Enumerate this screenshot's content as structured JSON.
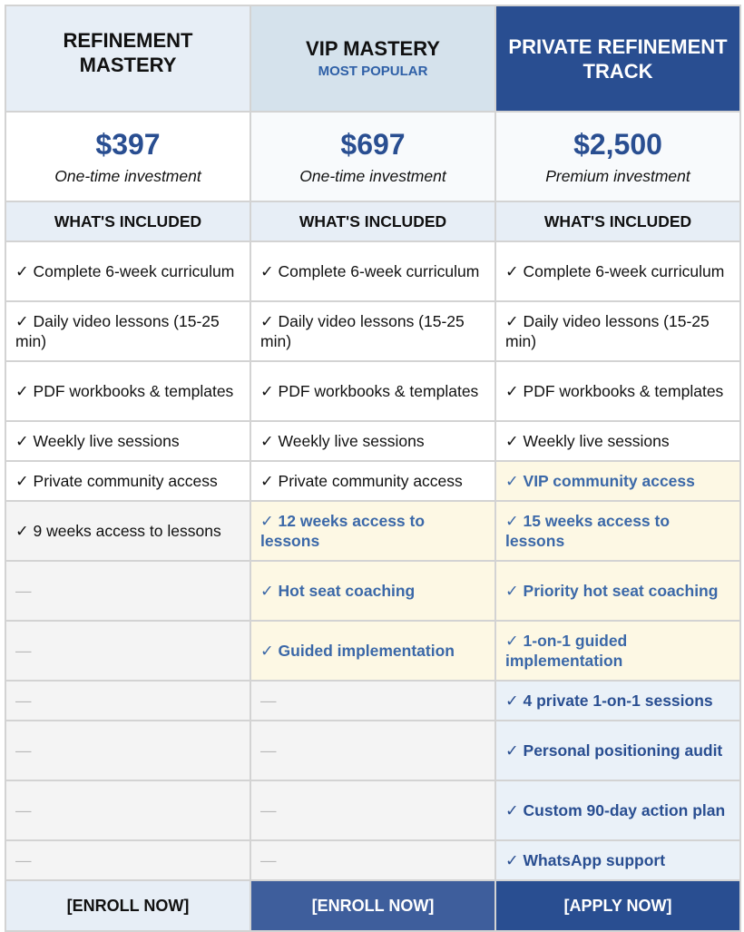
{
  "tiers": [
    {
      "name": "Refinement Mastery",
      "badge": "",
      "price": "$397",
      "price_note": "One-time investment",
      "cta": "[ENROLL NOW]"
    },
    {
      "name": "VIP Mastery",
      "badge": "MOST POPULAR",
      "price": "$697",
      "price_note": "One-time investment",
      "cta": "[ENROLL NOW]"
    },
    {
      "name": "Private Refinement Track",
      "badge": "",
      "price": "$2,500",
      "price_note": "Premium investment",
      "cta": "[APPLY NOW]"
    }
  ],
  "included_header": "WHAT'S INCLUDED",
  "features": [
    [
      "✓ Complete 6-week curriculum",
      "✓ Complete 6-week curriculum",
      "✓ Complete 6-week curriculum"
    ],
    [
      "✓ Daily video lessons (15-25 min)",
      "✓ Daily video lessons (15-25 min)",
      "✓ Daily video lessons (15-25 min)"
    ],
    [
      "✓ PDF workbooks & templates",
      "✓ PDF workbooks & templates",
      "✓ PDF workbooks & templates"
    ],
    [
      "✓ Weekly live sessions",
      "✓ Weekly live sessions",
      "✓ Weekly live sessions"
    ],
    [
      "✓ Private community access",
      "✓ Private community access",
      "✓ VIP community access"
    ],
    [
      "✓ 9 weeks access to lessons",
      "✓ 12 weeks access to lessons",
      "✓ 15 weeks access to lessons"
    ],
    [
      "—",
      "✓ Hot seat coaching",
      "✓ Priority hot seat coaching"
    ],
    [
      "—",
      "✓ Guided implementation",
      "✓ 1-on-1 guided implementation"
    ],
    [
      "—",
      "—",
      "✓ 4 private 1-on-1 sessions"
    ],
    [
      "—",
      "—",
      "✓ Personal positioning audit"
    ],
    [
      "—",
      "—",
      "✓ Custom 90-day action plan"
    ],
    [
      "—",
      "—",
      "✓ WhatsApp support"
    ]
  ],
  "colors": {
    "brand_navy": "#294e91",
    "accent_blue": "#2f60a7",
    "highlight_cream": "#fdf8e4",
    "highlight_blue": "#eaf1f8"
  }
}
